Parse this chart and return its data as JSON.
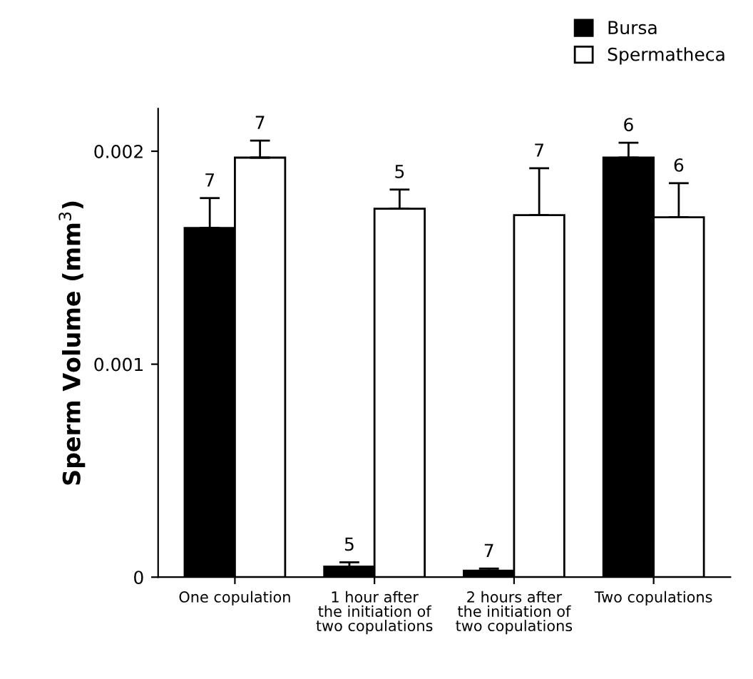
{
  "chart_data": {
    "type": "bar",
    "ylabel": "Sperm Volume (mm$^{3}$)",
    "categories": [
      "One copulation",
      "1 hour after\nthe initiation of\ntwo copulations",
      "2 hours after\nthe initiation of\ntwo copulations",
      "Two copulations"
    ],
    "series": [
      {
        "name": "Bursa",
        "color": "#000000",
        "values": [
          0.00164,
          5e-05,
          3e-05,
          0.00197
        ],
        "errors": [
          [
            0.00164,
            0.00178
          ],
          [
            5e-05,
            7e-05
          ],
          [
            3e-05,
            4e-05
          ],
          [
            0.00197,
            0.00204
          ]
        ]
      },
      {
        "name": "Spermatheca",
        "color": "#ffffff",
        "values": [
          0.00197,
          0.00173,
          0.0017,
          0.00169
        ],
        "errors": [
          [
            0.00197,
            0.00205
          ],
          [
            0.00173,
            0.00182
          ],
          [
            0.0017,
            0.00192
          ],
          [
            0.00169,
            0.00185
          ]
        ]
      }
    ],
    "annotations": [
      "7",
      "7",
      "5",
      "5",
      "7",
      "7",
      "6",
      "6"
    ],
    "ylim": [
      0,
      0.0022
    ],
    "yticks": [
      0,
      0.001,
      0.002
    ],
    "grid": false,
    "legend": "top right"
  }
}
